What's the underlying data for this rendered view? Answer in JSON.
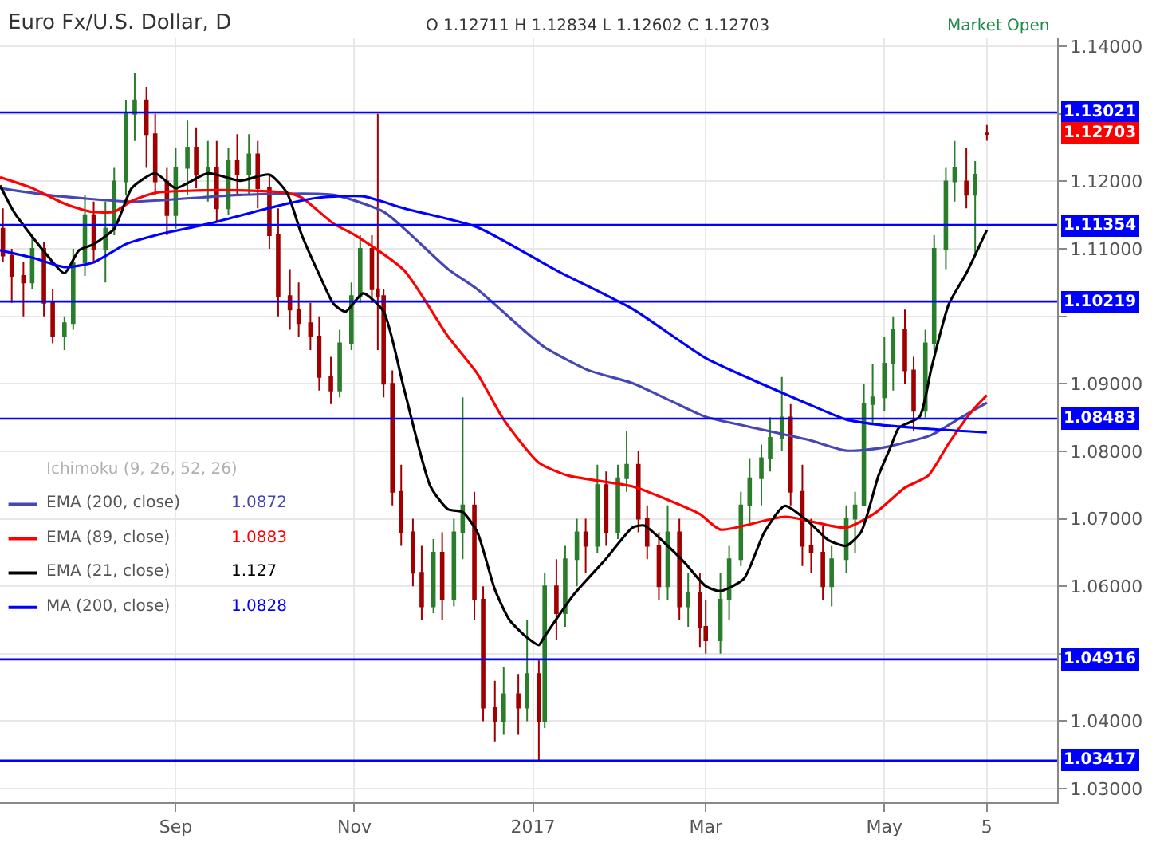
{
  "chart_data": {
    "type": "candlestick",
    "title": "Euro Fx/U.S. Dollar, D",
    "annotations": [
      "O 1.12711 H 1.12834 L 1.12602 C 1.12703",
      "Ichimoku (9, 26, 52, 26)",
      "Market Open",
      "1.0872",
      "1.0883",
      "1.127",
      "1.0828",
      "1.12703"
    ],
    "x": [
      "2016-07-04",
      "2016-07-07",
      "2016-07-11",
      "2016-07-14",
      "2016-07-18",
      "2016-07-21",
      "2016-07-25",
      "2016-07-28",
      "2016-08-01",
      "2016-08-04",
      "2016-08-08",
      "2016-08-11",
      "2016-08-15",
      "2016-08-18",
      "2016-08-22",
      "2016-08-25",
      "2016-08-29",
      "2016-09-01",
      "2016-09-05",
      "2016-09-08",
      "2016-09-12",
      "2016-09-15",
      "2016-09-19",
      "2016-09-22",
      "2016-09-26",
      "2016-09-29",
      "2016-10-03",
      "2016-10-06",
      "2016-10-10",
      "2016-10-13",
      "2016-10-17",
      "2016-10-20",
      "2016-10-24",
      "2016-10-27",
      "2016-10-31",
      "2016-11-03",
      "2016-11-07",
      "2016-11-09",
      "2016-11-11",
      "2016-11-14",
      "2016-11-17",
      "2016-11-21",
      "2016-11-24",
      "2016-11-28",
      "2016-12-01",
      "2016-12-05",
      "2016-12-08",
      "2016-12-12",
      "2016-12-15",
      "2016-12-19",
      "2016-12-22",
      "2016-12-27",
      "2016-12-30",
      "2017-01-03",
      "2017-01-05",
      "2017-01-09",
      "2017-01-12",
      "2017-01-16",
      "2017-01-19",
      "2017-01-23",
      "2017-01-26",
      "2017-01-30",
      "2017-02-02",
      "2017-02-06",
      "2017-02-09",
      "2017-02-13",
      "2017-02-16",
      "2017-02-20",
      "2017-02-23",
      "2017-02-27",
      "2017-03-01",
      "2017-03-06",
      "2017-03-09",
      "2017-03-13",
      "2017-03-16",
      "2017-03-20",
      "2017-03-23",
      "2017-03-27",
      "2017-03-30",
      "2017-04-03",
      "2017-04-06",
      "2017-04-10",
      "2017-04-13",
      "2017-04-18",
      "2017-04-21",
      "2017-04-24",
      "2017-04-27",
      "2017-05-01",
      "2017-05-04",
      "2017-05-08",
      "2017-05-11",
      "2017-05-15",
      "2017-05-18",
      "2017-05-22",
      "2017-05-25",
      "2017-05-29",
      "2017-06-01",
      "2017-06-05"
    ],
    "ohlc": [
      [
        1.113,
        1.116,
        1.108,
        1.109
      ],
      [
        1.109,
        1.11,
        1.102,
        1.106
      ],
      [
        1.106,
        1.108,
        1.1,
        1.105
      ],
      [
        1.105,
        1.112,
        1.104,
        1.11
      ],
      [
        1.11,
        1.111,
        1.1,
        1.102
      ],
      [
        1.102,
        1.104,
        1.096,
        1.097
      ],
      [
        1.097,
        1.1,
        1.095,
        1.099
      ],
      [
        1.099,
        1.11,
        1.098,
        1.108
      ],
      [
        1.108,
        1.118,
        1.106,
        1.115
      ],
      [
        1.115,
        1.117,
        1.108,
        1.11
      ],
      [
        1.11,
        1.117,
        1.105,
        1.113
      ],
      [
        1.113,
        1.122,
        1.112,
        1.12
      ],
      [
        1.12,
        1.132,
        1.118,
        1.13
      ],
      [
        1.13,
        1.136,
        1.126,
        1.132
      ],
      [
        1.132,
        1.134,
        1.122,
        1.127
      ],
      [
        1.127,
        1.13,
        1.118,
        1.12
      ],
      [
        1.12,
        1.122,
        1.112,
        1.115
      ],
      [
        1.115,
        1.125,
        1.113,
        1.122
      ],
      [
        1.122,
        1.129,
        1.118,
        1.125
      ],
      [
        1.125,
        1.128,
        1.119,
        1.121
      ],
      [
        1.121,
        1.126,
        1.117,
        1.122
      ],
      [
        1.122,
        1.126,
        1.114,
        1.116
      ],
      [
        1.116,
        1.125,
        1.115,
        1.123
      ],
      [
        1.123,
        1.127,
        1.118,
        1.121
      ],
      [
        1.121,
        1.127,
        1.118,
        1.124
      ],
      [
        1.124,
        1.126,
        1.116,
        1.119
      ],
      [
        1.119,
        1.121,
        1.11,
        1.112
      ],
      [
        1.112,
        1.116,
        1.1,
        1.103
      ],
      [
        1.103,
        1.107,
        1.098,
        1.101
      ],
      [
        1.101,
        1.105,
        1.097,
        1.099
      ],
      [
        1.099,
        1.102,
        1.095,
        1.097
      ],
      [
        1.097,
        1.1,
        1.089,
        1.091
      ],
      [
        1.091,
        1.094,
        1.087,
        1.089
      ],
      [
        1.089,
        1.098,
        1.088,
        1.096
      ],
      [
        1.096,
        1.105,
        1.095,
        1.103
      ],
      [
        1.103,
        1.112,
        1.102,
        1.11
      ],
      [
        1.11,
        1.112,
        1.102,
        1.104
      ],
      [
        1.104,
        1.13,
        1.095,
        1.103
      ],
      [
        1.103,
        1.104,
        1.088,
        1.09
      ],
      [
        1.09,
        1.092,
        1.072,
        1.074
      ],
      [
        1.074,
        1.078,
        1.066,
        1.068
      ],
      [
        1.068,
        1.07,
        1.06,
        1.062
      ],
      [
        1.062,
        1.066,
        1.055,
        1.057
      ],
      [
        1.057,
        1.067,
        1.056,
        1.065
      ],
      [
        1.065,
        1.068,
        1.055,
        1.058
      ],
      [
        1.058,
        1.07,
        1.057,
        1.068
      ],
      [
        1.068,
        1.088,
        1.064,
        1.072
      ],
      [
        1.072,
        1.074,
        1.055,
        1.058
      ],
      [
        1.058,
        1.06,
        1.04,
        1.042
      ],
      [
        1.042,
        1.046,
        1.037,
        1.04
      ],
      [
        1.04,
        1.048,
        1.038,
        1.044
      ],
      [
        1.044,
        1.047,
        1.038,
        1.042
      ],
      [
        1.042,
        1.055,
        1.04,
        1.047
      ],
      [
        1.047,
        1.049,
        1.034,
        1.04
      ],
      [
        1.04,
        1.062,
        1.039,
        1.06
      ],
      [
        1.06,
        1.064,
        1.052,
        1.056
      ],
      [
        1.056,
        1.066,
        1.054,
        1.064
      ],
      [
        1.064,
        1.07,
        1.06,
        1.068
      ],
      [
        1.068,
        1.07,
        1.062,
        1.066
      ],
      [
        1.066,
        1.078,
        1.065,
        1.075
      ],
      [
        1.075,
        1.077,
        1.066,
        1.068
      ],
      [
        1.068,
        1.078,
        1.067,
        1.076
      ],
      [
        1.076,
        1.083,
        1.074,
        1.078
      ],
      [
        1.078,
        1.08,
        1.068,
        1.07
      ],
      [
        1.07,
        1.072,
        1.064,
        1.066
      ],
      [
        1.066,
        1.068,
        1.058,
        1.06
      ],
      [
        1.06,
        1.072,
        1.058,
        1.068
      ],
      [
        1.068,
        1.07,
        1.055,
        1.057
      ],
      [
        1.057,
        1.062,
        1.054,
        1.059
      ],
      [
        1.059,
        1.062,
        1.051,
        1.054
      ],
      [
        1.054,
        1.058,
        1.05,
        1.052
      ],
      [
        1.052,
        1.062,
        1.05,
        1.058
      ],
      [
        1.058,
        1.066,
        1.055,
        1.064
      ],
      [
        1.064,
        1.074,
        1.063,
        1.072
      ],
      [
        1.072,
        1.079,
        1.069,
        1.076
      ],
      [
        1.076,
        1.081,
        1.072,
        1.079
      ],
      [
        1.079,
        1.085,
        1.077,
        1.082
      ],
      [
        1.082,
        1.091,
        1.08,
        1.085
      ],
      [
        1.085,
        1.087,
        1.072,
        1.074
      ],
      [
        1.074,
        1.078,
        1.063,
        1.066
      ],
      [
        1.066,
        1.07,
        1.062,
        1.065
      ],
      [
        1.065,
        1.069,
        1.058,
        1.06
      ],
      [
        1.06,
        1.066,
        1.057,
        1.064
      ],
      [
        1.064,
        1.072,
        1.062,
        1.07
      ],
      [
        1.07,
        1.074,
        1.065,
        1.072
      ],
      [
        1.072,
        1.09,
        1.072,
        1.087
      ],
      [
        1.087,
        1.093,
        1.084,
        1.088
      ],
      [
        1.088,
        1.097,
        1.086,
        1.093
      ],
      [
        1.093,
        1.1,
        1.089,
        1.098
      ],
      [
        1.098,
        1.101,
        1.09,
        1.092
      ],
      [
        1.092,
        1.094,
        1.083,
        1.086
      ],
      [
        1.086,
        1.098,
        1.085,
        1.096
      ],
      [
        1.096,
        1.112,
        1.095,
        1.11
      ],
      [
        1.11,
        1.122,
        1.107,
        1.12
      ],
      [
        1.12,
        1.126,
        1.117,
        1.122
      ],
      [
        1.12,
        1.125,
        1.116,
        1.118
      ],
      [
        1.118,
        1.123,
        1.109,
        1.121
      ],
      [
        1.12711,
        1.12834,
        1.12602,
        1.12703
      ]
    ],
    "series": [
      {
        "name": "EMA (200, close)",
        "type": "line",
        "color": "#4646b4",
        "x": [
          "2016-07-03",
          "2016-07-19",
          "2016-08-17",
          "2016-09-23",
          "2016-10-25",
          "2016-11-11",
          "2016-11-18",
          "2016-12-03",
          "2016-12-13",
          "2016-12-30",
          "2017-01-05",
          "2017-01-20",
          "2017-02-04",
          "2017-02-15",
          "2017-03-01",
          "2017-03-14",
          "2017-04-05",
          "2017-04-18",
          "2017-04-30",
          "2017-05-17",
          "2017-05-26",
          "2017-06-05"
        ],
        "values": [
          1.119,
          1.118,
          1.117,
          1.118,
          1.118,
          1.1155,
          1.113,
          1.107,
          1.104,
          1.0975,
          1.0954,
          1.092,
          1.0901,
          1.0879,
          1.0851,
          1.0838,
          1.0817,
          1.0801,
          1.0805,
          1.0824,
          1.0847,
          1.0872
        ]
      },
      {
        "name": "EMA (89, close)",
        "type": "line",
        "color": "#ff0000",
        "x": [
          "2016-07-03",
          "2016-07-14",
          "2016-07-25",
          "2016-08-03",
          "2016-08-11",
          "2016-08-17",
          "2016-08-25",
          "2016-09-17",
          "2016-10-09",
          "2016-10-14",
          "2016-10-25",
          "2016-11-01",
          "2016-11-18",
          "2016-12-03",
          "2016-12-13",
          "2016-12-22",
          "2017-01-03",
          "2017-01-13",
          "2017-02-04",
          "2017-02-15",
          "2017-02-27",
          "2017-03-06",
          "2017-03-28",
          "2017-04-18",
          "2017-04-28",
          "2017-05-08",
          "2017-05-16",
          "2017-05-23",
          "2017-05-31",
          "2017-06-05"
        ],
        "values": [
          1.1206,
          1.119,
          1.1167,
          1.1155,
          1.1155,
          1.1171,
          1.1183,
          1.1187,
          1.1183,
          1.1176,
          1.1137,
          1.1121,
          1.1068,
          1.097,
          1.0915,
          1.0847,
          1.0783,
          1.0764,
          1.0748,
          1.073,
          1.0707,
          1.0684,
          1.0703,
          1.0687,
          1.0709,
          1.0746,
          1.0764,
          1.0812,
          1.086,
          1.0883
        ]
      },
      {
        "name": "EMA (21, close)",
        "type": "line",
        "color": "#000000",
        "x": [
          "2016-07-03",
          "2016-07-08",
          "2016-07-19",
          "2016-07-25",
          "2016-07-30",
          "2016-08-04",
          "2016-08-11",
          "2016-08-17",
          "2016-08-25",
          "2016-09-01",
          "2016-09-12",
          "2016-09-23",
          "2016-10-03",
          "2016-10-09",
          "2016-10-14",
          "2016-10-20",
          "2016-10-25",
          "2016-10-29",
          "2016-11-04",
          "2016-11-11",
          "2016-11-18",
          "2016-11-27",
          "2016-12-03",
          "2016-12-08",
          "2016-12-13",
          "2016-12-19",
          "2016-12-24",
          "2016-12-30",
          "2017-01-03",
          "2017-01-05",
          "2017-01-15",
          "2017-01-26",
          "2017-02-04",
          "2017-02-08",
          "2017-02-15",
          "2017-02-22",
          "2017-03-01",
          "2017-03-06",
          "2017-03-14",
          "2017-03-21",
          "2017-03-28",
          "2017-04-05",
          "2017-04-12",
          "2017-04-18",
          "2017-04-23",
          "2017-04-29",
          "2017-05-03",
          "2017-05-06",
          "2017-05-13",
          "2017-05-17",
          "2017-05-23",
          "2017-05-29",
          "2017-06-05"
        ],
        "values": [
          1.1194,
          1.1153,
          1.1091,
          1.1064,
          1.1098,
          1.1107,
          1.113,
          1.119,
          1.1212,
          1.119,
          1.1212,
          1.1201,
          1.121,
          1.1183,
          1.1121,
          1.1062,
          1.1018,
          1.1007,
          1.1034,
          1.1007,
          1.0892,
          1.0748,
          1.0714,
          1.071,
          1.068,
          1.0595,
          1.055,
          1.0524,
          1.0513,
          1.0526,
          1.0588,
          1.0641,
          1.0687,
          1.069,
          1.0664,
          1.0634,
          1.06,
          1.0593,
          1.0611,
          1.068,
          1.0719,
          1.0696,
          1.0668,
          1.066,
          1.068,
          1.0764,
          1.0805,
          1.0835,
          1.0851,
          1.0922,
          1.1018,
          1.1064,
          1.1128
        ]
      },
      {
        "name": "MA (200, close)",
        "type": "line",
        "color": "#0000ff",
        "x": [
          "2016-07-03",
          "2016-07-14",
          "2016-07-25",
          "2016-08-04",
          "2016-08-15",
          "2016-08-26",
          "2016-09-12",
          "2016-09-28",
          "2016-10-09",
          "2016-10-20",
          "2016-11-04",
          "2016-11-18",
          "2016-12-13",
          "2017-01-09",
          "2017-02-04",
          "2017-03-01",
          "2017-03-18",
          "2017-04-05",
          "2017-04-18",
          "2017-04-28",
          "2017-05-17",
          "2017-06-05"
        ],
        "values": [
          1.1098,
          1.1087,
          1.1073,
          1.108,
          1.1107,
          1.1121,
          1.1137,
          1.1155,
          1.1167,
          1.1176,
          1.1178,
          1.116,
          1.1132,
          1.1068,
          1.1011,
          1.0938,
          1.0904,
          1.087,
          1.0847,
          1.084,
          1.0833,
          1.0828
        ]
      }
    ],
    "ref_lines": [
      {
        "axis": "y",
        "value": 1.13021,
        "label": "1.13021",
        "color": "#0000ff"
      },
      {
        "axis": "y",
        "value": 1.11354,
        "label": "1.11354",
        "color": "#0000ff"
      },
      {
        "axis": "y",
        "value": 1.10219,
        "label": "1.10219",
        "color": "#0000ff"
      },
      {
        "axis": "y",
        "value": 1.08483,
        "label": "1.08483",
        "color": "#0000ff"
      },
      {
        "axis": "y",
        "value": 1.04916,
        "label": "1.04916",
        "color": "#0000ff"
      },
      {
        "axis": "y",
        "value": 1.03417,
        "label": "1.03417",
        "color": "#0000ff"
      }
    ],
    "xlim": [
      "2016-07-03",
      "2017-06-29"
    ],
    "xticks": [
      {
        "value": "2016-09-01",
        "label": "Sep"
      },
      {
        "value": "2016-11-01",
        "label": "Nov"
      },
      {
        "value": "2017-01-01",
        "label": "2017"
      },
      {
        "value": "2017-03-01",
        "label": "Mar"
      },
      {
        "value": "2017-05-01",
        "label": "May"
      },
      {
        "value": "2017-06-05",
        "label": "5"
      }
    ],
    "ylim": [
      1.028,
      1.1412
    ],
    "yticks": [
      {
        "value": 1.03,
        "label": "1.03000"
      },
      {
        "value": 1.04,
        "label": "1.04000"
      },
      {
        "value": 1.05,
        "label": null
      },
      {
        "value": 1.06,
        "label": "1.06000"
      },
      {
        "value": 1.07,
        "label": "1.07000"
      },
      {
        "value": 1.08,
        "label": "1.08000"
      },
      {
        "value": 1.09,
        "label": "1.09000"
      },
      {
        "value": 1.1,
        "label": null
      },
      {
        "value": 1.11,
        "label": "1.11000"
      },
      {
        "value": 1.12,
        "label": "1.12000"
      },
      {
        "value": 1.13,
        "label": null
      },
      {
        "value": 1.14,
        "label": "1.14000"
      }
    ],
    "grid": true,
    "legend": "left"
  }
}
